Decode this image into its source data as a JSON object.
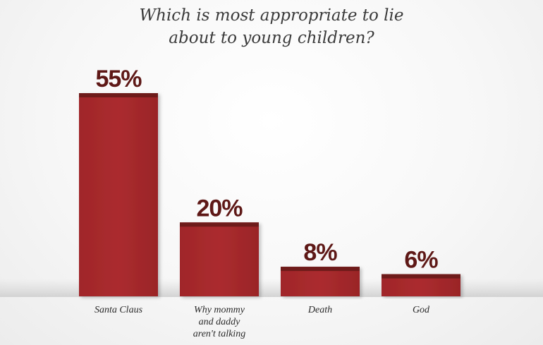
{
  "chart_data": {
    "type": "bar",
    "title_lines": [
      "Which is most appropriate to lie",
      "about to young children?"
    ],
    "categories": [
      [
        "Santa Claus"
      ],
      [
        "Why mommy",
        "and daddy",
        "aren't talking"
      ],
      [
        "Death"
      ],
      [
        "God"
      ]
    ],
    "values": [
      55,
      20,
      8,
      6
    ],
    "value_labels": [
      "55%",
      "20%",
      "8%",
      "6%"
    ],
    "unit": "%",
    "ylim": [
      0,
      60
    ],
    "grid": false,
    "legend": "none",
    "colors": {
      "bar": "#a3282b",
      "bar_top": "#6e1b1a",
      "label": "#5e1816"
    }
  }
}
